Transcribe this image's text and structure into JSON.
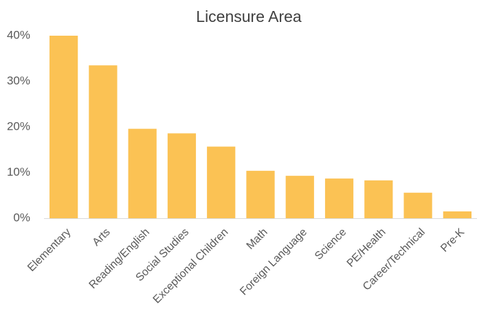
{
  "chart_data": {
    "type": "bar",
    "title": "Licensure Area",
    "categories": [
      "Elementary",
      "Arts",
      "Reading/English",
      "Social Studies",
      "Exceptional Children",
      "Math",
      "Foreign Language",
      "Science",
      "PE/Health",
      "Career/Technical",
      "Pre-K"
    ],
    "values": [
      40,
      33.5,
      19.6,
      18.6,
      15.7,
      10.4,
      9.3,
      8.7,
      8.3,
      5.6,
      1.5
    ],
    "color": "#fbc254",
    "ylim": [
      0,
      40
    ],
    "yticks": [
      {
        "value": 0,
        "label": "0%"
      },
      {
        "value": 10,
        "label": "10%"
      },
      {
        "value": 20,
        "label": "20%"
      },
      {
        "value": 30,
        "label": "30%"
      },
      {
        "value": 40,
        "label": "40%"
      }
    ],
    "grid": false
  }
}
